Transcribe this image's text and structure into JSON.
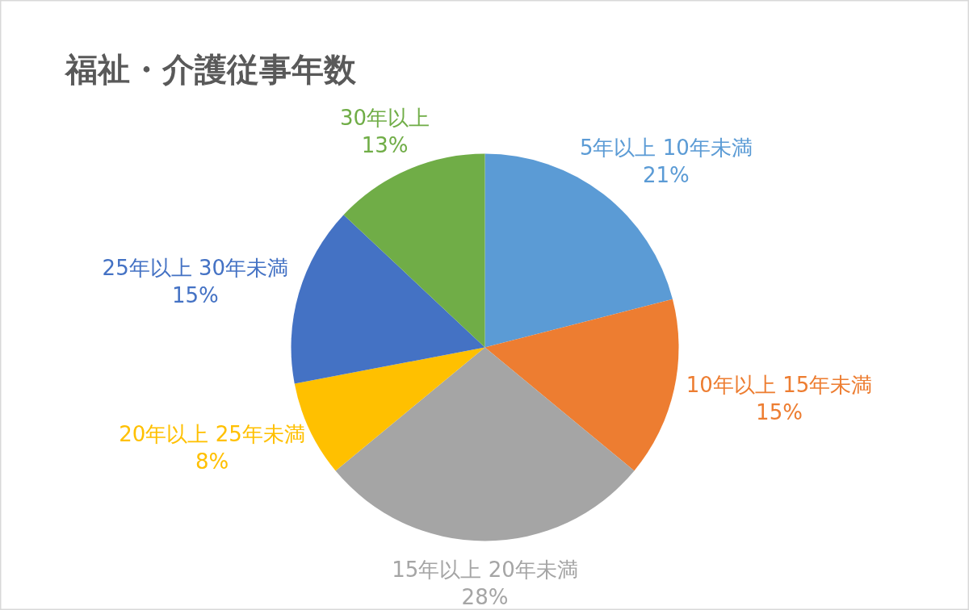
{
  "chart_data": {
    "type": "pie",
    "title": "福祉・介護従事年数",
    "categories": [
      "5年以上 10年未満",
      "10年以上 15年未満",
      "15年以上 20年未満",
      "20年以上 25年未満",
      "25年以上 30年未満",
      "30年以上"
    ],
    "values": [
      21,
      15,
      28,
      8,
      15,
      13
    ],
    "value_labels": [
      "21%",
      "15%",
      "28%",
      "8%",
      "15%",
      "13%"
    ],
    "colors": [
      "#5b9bd5",
      "#ed7d31",
      "#a5a5a5",
      "#ffc000",
      "#4472c4",
      "#70ad47"
    ]
  }
}
